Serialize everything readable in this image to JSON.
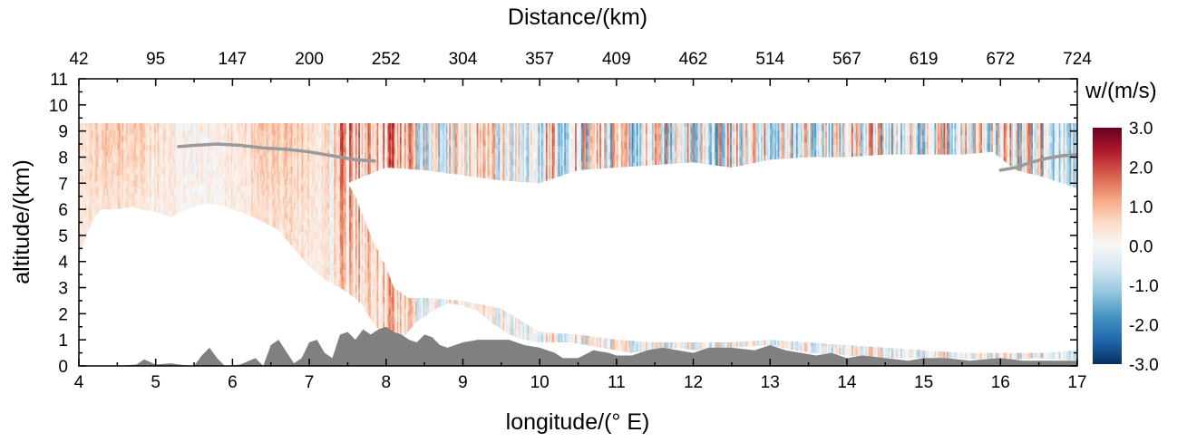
{
  "chart_data": {
    "type": "heatmap",
    "title": "",
    "xlabel": "longitude/(° E)",
    "ylabel": "altitude/(km)",
    "x2label": "Distance/(km)",
    "colorbar_label": "w/(m/s)",
    "xlim": [
      4,
      17
    ],
    "ylim": [
      0,
      11
    ],
    "clim": [
      -3.0,
      3.0
    ],
    "x_ticks": [
      4,
      5,
      6,
      7,
      8,
      9,
      10,
      11,
      12,
      13,
      14,
      15,
      16,
      17
    ],
    "x_tick_labels": [
      "4",
      "5",
      "6",
      "7",
      "8",
      "9",
      "10",
      "11",
      "12",
      "13",
      "14",
      "15",
      "16",
      "17"
    ],
    "y_ticks": [
      0,
      1,
      2,
      3,
      4,
      5,
      6,
      7,
      8,
      9,
      10,
      11
    ],
    "y_tick_labels": [
      "0",
      "1",
      "2",
      "3",
      "4",
      "5",
      "6",
      "7",
      "8",
      "9",
      "10",
      "11"
    ],
    "top_ticks_lon": [
      4.0,
      5.0,
      6.0,
      7.0,
      8.0,
      9.0,
      10.0,
      11.0,
      12.0,
      13.0,
      14.0,
      15.0,
      16.0,
      17.0
    ],
    "top_tick_labels": [
      "42",
      "95",
      "147",
      "200",
      "252",
      "304",
      "357",
      "409",
      "462",
      "514",
      "567",
      "619",
      "672",
      "724"
    ],
    "colorbar_ticks": [
      3.0,
      2.0,
      1.0,
      0.0,
      -1.0,
      -2.0,
      -3.0
    ],
    "colorbar_tick_labels": [
      "3.0",
      "2.0",
      "1.0",
      "0.0",
      "-1.0",
      "-2.0",
      "-3.0"
    ],
    "colormap": [
      "#053061",
      "#2166ac",
      "#4393c3",
      "#92c5de",
      "#d1e5f0",
      "#f7f7f7",
      "#fddbc7",
      "#f4a582",
      "#d6604d",
      "#b2182b",
      "#67001f"
    ],
    "terrain_color": "#808080",
    "tropopause_color": "#9a9a9a",
    "terrain": {
      "lon": [
        4.0,
        4.5,
        4.75,
        4.85,
        5.0,
        5.2,
        5.3,
        5.5,
        5.6,
        5.7,
        5.8,
        5.9,
        6.1,
        6.3,
        6.4,
        6.5,
        6.6,
        6.8,
        6.9,
        7.0,
        7.1,
        7.2,
        7.3,
        7.4,
        7.5,
        7.6,
        7.7,
        7.8,
        7.9,
        8.0,
        8.1,
        8.2,
        8.3,
        8.4,
        8.5,
        8.6,
        8.7,
        8.8,
        9.0,
        9.2,
        9.4,
        9.6,
        9.8,
        10.0,
        10.2,
        10.3,
        10.5,
        10.7,
        10.9,
        11.0,
        11.2,
        11.4,
        11.6,
        11.8,
        12.0,
        12.2,
        12.5,
        12.8,
        13.0,
        13.2,
        13.4,
        13.6,
        13.8,
        14.0,
        14.2,
        14.5,
        14.8,
        15.0,
        15.3,
        15.6,
        16.0,
        16.3,
        16.6,
        17.0
      ],
      "height": [
        0.0,
        0.0,
        0.05,
        0.25,
        0.05,
        0.1,
        0.05,
        0.0,
        0.4,
        0.7,
        0.3,
        0.0,
        0.05,
        0.3,
        0.0,
        0.8,
        1.0,
        0.1,
        0.3,
        0.9,
        1.0,
        0.5,
        0.3,
        1.2,
        1.3,
        1.0,
        1.4,
        1.2,
        1.4,
        1.5,
        1.3,
        1.2,
        1.0,
        0.9,
        1.2,
        1.1,
        0.8,
        0.7,
        0.9,
        1.0,
        1.0,
        1.0,
        0.8,
        0.7,
        0.5,
        0.3,
        0.3,
        0.6,
        0.5,
        0.4,
        0.4,
        0.6,
        0.7,
        0.6,
        0.5,
        0.7,
        0.7,
        0.6,
        0.8,
        0.6,
        0.5,
        0.4,
        0.5,
        0.3,
        0.4,
        0.3,
        0.2,
        0.3,
        0.3,
        0.2,
        0.3,
        0.2,
        0.2,
        0.2
      ]
    },
    "data_top": {
      "lon": [
        4.0,
        5.0,
        6.0,
        7.0,
        8.0,
        9.0,
        10.0,
        11.0,
        12.0,
        13.0,
        14.0,
        15.0,
        16.0,
        17.0
      ],
      "altitude": [
        9.3,
        9.3,
        9.3,
        9.3,
        9.3,
        9.3,
        9.3,
        9.3,
        9.3,
        9.3,
        9.3,
        9.3,
        9.3,
        9.3
      ]
    },
    "data_bottom": {
      "lon": [
        4.0,
        4.1,
        4.2,
        4.3,
        4.5,
        4.7,
        4.8,
        5.0,
        5.2,
        5.4,
        5.6,
        5.8,
        6.0,
        6.2,
        6.4,
        6.6,
        6.8,
        7.0,
        7.2,
        7.4,
        7.5,
        7.6,
        7.7,
        7.8,
        7.9,
        8.0,
        8.05,
        8.1,
        8.2,
        8.4,
        8.6,
        8.8,
        9.0,
        9.2,
        9.4,
        9.6,
        9.8,
        10.0,
        10.4,
        10.8,
        11.0,
        11.2,
        11.4,
        11.6,
        11.8,
        12.0,
        12.5,
        13.0,
        13.5,
        14.0,
        14.5,
        15.0,
        15.5,
        16.0,
        16.5,
        17.0
      ],
      "altitude": [
        4.0,
        5.0,
        5.7,
        6.0,
        6.0,
        6.1,
        6.0,
        5.9,
        5.7,
        6.0,
        6.2,
        6.2,
        6.0,
        5.8,
        5.5,
        5.2,
        4.5,
        3.8,
        3.3,
        3.0,
        2.8,
        2.6,
        2.3,
        1.8,
        1.4,
        1.0,
        0.9,
        0.8,
        1.0,
        1.7,
        2.1,
        2.4,
        2.3,
        2.1,
        1.6,
        1.2,
        1.0,
        0.9,
        0.9,
        0.7,
        0.6,
        0.5,
        0.6,
        0.6,
        0.7,
        0.6,
        0.7,
        0.8,
        0.5,
        0.4,
        0.3,
        0.3,
        0.3,
        0.2,
        0.3,
        0.2
      ]
    },
    "hole_top": {
      "lon": [
        7.5,
        8.0,
        8.5,
        9.0,
        9.5,
        10.0,
        10.5,
        11.0,
        11.5,
        12.0,
        12.5,
        13.0,
        13.5,
        14.0,
        14.5,
        15.0,
        15.5,
        15.9,
        16.2,
        16.6,
        17.0
      ],
      "altitude": [
        7.0,
        7.6,
        7.5,
        7.3,
        7.1,
        7.0,
        7.5,
        7.6,
        7.7,
        7.8,
        7.6,
        7.9,
        8.0,
        8.0,
        8.1,
        8.1,
        8.1,
        8.2,
        7.5,
        7.2,
        6.8
      ]
    },
    "hole_bottom": {
      "lon": [
        7.5,
        7.6,
        7.8,
        8.0,
        8.1,
        8.3,
        8.6,
        9.0,
        9.5,
        10.0,
        10.5,
        11.0,
        11.5,
        12.0,
        12.5,
        13.0,
        13.5,
        14.0,
        14.5,
        15.0,
        15.5,
        16.0,
        16.3,
        16.6,
        17.0
      ],
      "altitude": [
        7.0,
        6.5,
        5.0,
        3.8,
        3.0,
        2.6,
        2.6,
        2.5,
        2.2,
        1.3,
        1.2,
        1.0,
        0.9,
        0.9,
        0.9,
        1.0,
        0.9,
        0.8,
        0.7,
        0.6,
        0.5,
        0.5,
        0.5,
        0.5,
        0.6
      ]
    },
    "tropopause_segments": [
      {
        "lon": [
          5.3,
          5.5,
          5.8,
          6.1,
          6.4,
          6.7,
          7.0,
          7.3,
          7.6,
          7.85
        ],
        "altitude": [
          8.4,
          8.45,
          8.5,
          8.45,
          8.35,
          8.3,
          8.2,
          8.05,
          7.9,
          7.85
        ]
      },
      {
        "lon": [
          16.0,
          16.2,
          16.4,
          16.6,
          16.8,
          17.0
        ],
        "altitude": [
          7.5,
          7.6,
          7.8,
          7.95,
          8.05,
          8.1
        ]
      }
    ],
    "upper_white_line_altitude": 9.65
  }
}
